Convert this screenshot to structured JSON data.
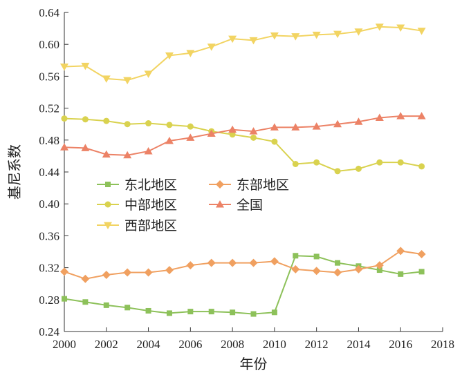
{
  "chart_data": {
    "type": "line",
    "xlabel": "年份",
    "ylabel": "基尼系数",
    "xlim": [
      2000,
      2018
    ],
    "ylim": [
      0.24,
      0.64
    ],
    "x_ticks": [
      2000,
      2002,
      2004,
      2006,
      2008,
      2010,
      2012,
      2014,
      2016,
      2018
    ],
    "y_ticks": [
      0.24,
      0.28,
      0.32,
      0.36,
      0.4,
      0.44,
      0.48,
      0.52,
      0.56,
      0.6,
      0.64
    ],
    "y_tick_labels": [
      "0.24",
      "0.28",
      "0.32",
      "0.36",
      "0.40",
      "0.44",
      "0.48",
      "0.52",
      "0.56",
      "0.60",
      "0.64"
    ],
    "grid": false,
    "legend_position": "center-left",
    "x": [
      2000,
      2001,
      2002,
      2003,
      2004,
      2005,
      2006,
      2007,
      2008,
      2009,
      2010,
      2011,
      2012,
      2013,
      2014,
      2015,
      2016,
      2017
    ],
    "series": [
      {
        "name": "东北地区",
        "color": "#8dc15a",
        "marker": "square",
        "values": [
          0.281,
          0.277,
          0.273,
          0.27,
          0.266,
          0.263,
          0.265,
          0.265,
          0.264,
          0.262,
          0.264,
          0.335,
          0.334,
          0.326,
          0.322,
          0.317,
          0.312,
          0.315
        ]
      },
      {
        "name": "东部地区",
        "color": "#f0a060",
        "marker": "diamond",
        "values": [
          0.315,
          0.306,
          0.311,
          0.314,
          0.314,
          0.317,
          0.323,
          0.326,
          0.326,
          0.326,
          0.328,
          0.318,
          0.316,
          0.314,
          0.318,
          0.323,
          0.341,
          0.337
        ]
      },
      {
        "name": "中部地区",
        "color": "#d9d24f",
        "marker": "circle",
        "values": [
          0.507,
          0.506,
          0.504,
          0.5,
          0.501,
          0.499,
          0.497,
          0.491,
          0.487,
          0.483,
          0.478,
          0.45,
          0.452,
          0.441,
          0.444,
          0.452,
          0.452,
          0.447
        ]
      },
      {
        "name": "全国",
        "color": "#ec8266",
        "marker": "triangle-up",
        "values": [
          0.471,
          0.47,
          0.462,
          0.461,
          0.466,
          0.479,
          0.483,
          0.488,
          0.493,
          0.491,
          0.496,
          0.496,
          0.497,
          0.5,
          0.503,
          0.508,
          0.51,
          0.51
        ]
      },
      {
        "name": "西部地区",
        "color": "#f2d462",
        "marker": "triangle-down",
        "values": [
          0.572,
          0.573,
          0.557,
          0.555,
          0.563,
          0.586,
          0.589,
          0.597,
          0.607,
          0.605,
          0.611,
          0.61,
          0.612,
          0.613,
          0.616,
          0.622,
          0.621,
          0.617
        ]
      }
    ],
    "legend": [
      {
        "series_index": 0,
        "label": "东北地区"
      },
      {
        "series_index": 1,
        "label": "东部地区"
      },
      {
        "series_index": 2,
        "label": "中部地区"
      },
      {
        "series_index": 3,
        "label": "全国"
      },
      {
        "series_index": 4,
        "label": "西部地区"
      }
    ]
  }
}
